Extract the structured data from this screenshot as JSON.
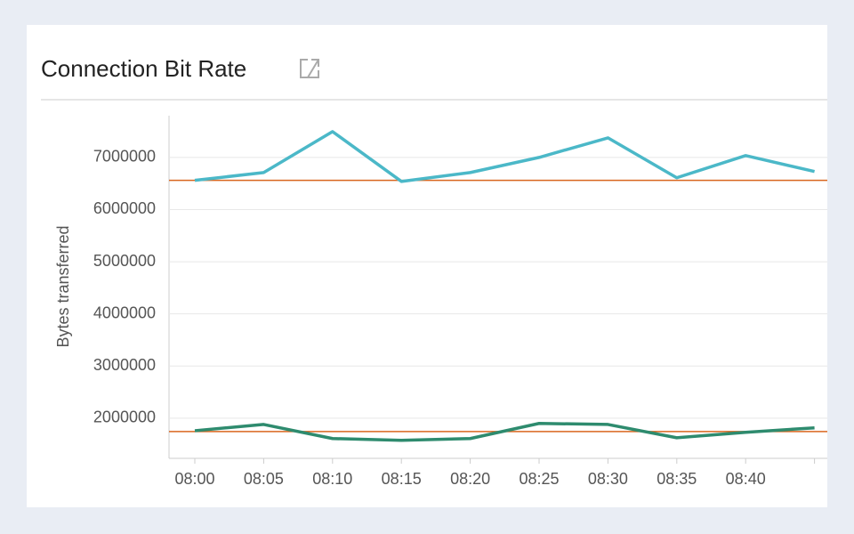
{
  "chart_data": {
    "type": "line",
    "title": "Connection Bit Rate",
    "y_label": "Bytes transferred",
    "categories": [
      "08:00",
      "08:05",
      "08:10",
      "08:15",
      "08:20",
      "08:25",
      "08:30",
      "08:35",
      "08:40",
      null
    ],
    "series": [
      {
        "color": "#4bb8c8",
        "values": [
          6560000,
          6710000,
          7495000,
          6540000,
          6710000,
          7000000,
          7375000,
          6610000,
          7035000,
          6730000
        ]
      },
      {
        "color": "#2e8b6e",
        "values": [
          1760000,
          1880000,
          1610000,
          1575000,
          1610000,
          1900000,
          1880000,
          1625000,
          1730000,
          1815000
        ]
      }
    ],
    "reference_lines": [
      {
        "value": 6560000,
        "color": "#d9661f"
      },
      {
        "value": 1745000,
        "color": "#d9661f"
      }
    ],
    "ylim": [
      1230000,
      7800000
    ],
    "yticks": [
      2000000,
      3000000,
      4000000,
      5000000,
      6000000,
      7000000
    ],
    "grid": true
  }
}
